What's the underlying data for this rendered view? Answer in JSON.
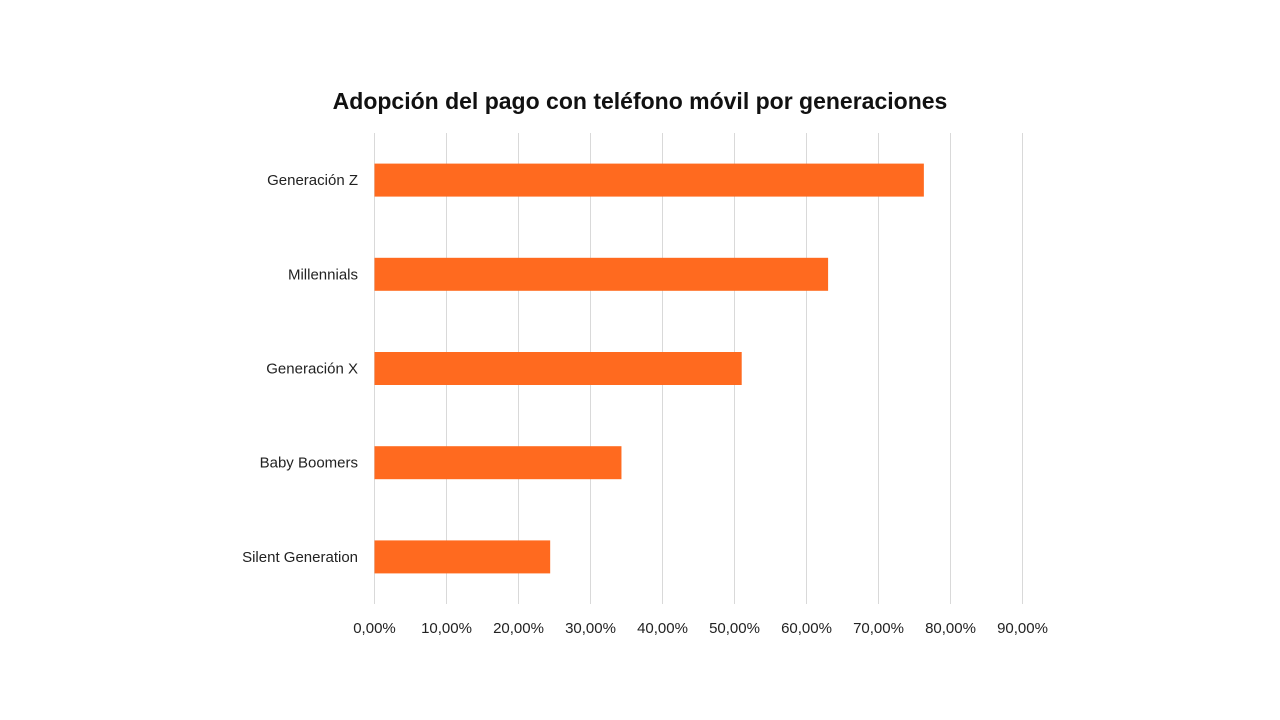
{
  "chart_data": {
    "type": "bar",
    "orientation": "horizontal",
    "title": "Adopción del pago con teléfono móvil por generaciones",
    "categories": [
      "Generación Z",
      "Millennials",
      "Generación X",
      "Baby Boomers",
      "Silent Generation"
    ],
    "series": [
      {
        "values": [
          76.3,
          63.0,
          51.0,
          34.3,
          24.4
        ]
      }
    ],
    "xlim": [
      0,
      90
    ],
    "x_ticks": [
      0,
      10,
      20,
      30,
      40,
      50,
      60,
      70,
      80,
      90
    ],
    "x_tick_labels": [
      "0,00%",
      "10,00%",
      "20,00%",
      "30,00%",
      "40,00%",
      "50,00%",
      "60,00%",
      "70,00%",
      "80,00%",
      "90,00%"
    ],
    "bar_color": "#ff6a1f",
    "grid": true,
    "legend": "none"
  }
}
